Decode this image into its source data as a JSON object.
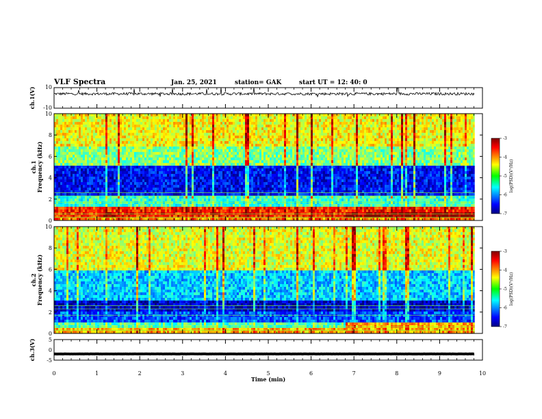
{
  "header": {
    "title": "VLF Spectra",
    "date": "Jan. 25, 2021",
    "station": "station= GAK",
    "start": "start  UT  =   12: 40: 0"
  },
  "panels": {
    "ch1v": {
      "label": "ch.1(V)",
      "ticks": [
        "10",
        "-10"
      ]
    },
    "spec1": {
      "label_ch": "ch.1",
      "label_freq": "Frequency (kHz)",
      "ticks": [
        "0",
        "2",
        "4",
        "6",
        "8",
        "10"
      ]
    },
    "spec2": {
      "label_ch": "ch.2",
      "label_freq": "Frequency (kHz)",
      "ticks": [
        "0",
        "2",
        "4",
        "6",
        "8",
        "10"
      ]
    },
    "ch3v": {
      "label": "ch.3(V)",
      "ticks": [
        "5",
        "0",
        "-5"
      ]
    },
    "xaxis": {
      "label": "Time (min)",
      "ticks": [
        "0",
        "1",
        "2",
        "3",
        "4",
        "5",
        "6",
        "7",
        "8",
        "9",
        "10"
      ]
    }
  },
  "colorbar": {
    "ticks": [
      "-3",
      "-4",
      "-5",
      "-6",
      "-7"
    ],
    "label": "log(PSD)(V²/Hz)"
  },
  "chart_data": {
    "type": "heatmap",
    "title": "VLF Spectra",
    "xlabel": "Time (min)",
    "xlim": [
      0,
      10
    ],
    "data_extent_min": 9.82,
    "subplots": [
      {
        "name": "ch.1(V)",
        "type": "line",
        "ylim": [
          -10,
          10
        ],
        "mean": 4,
        "noise": 1.3
      },
      {
        "name": "ch.1",
        "type": "heatmap",
        "ylabel": "Frequency (kHz)",
        "ylim": [
          0,
          10
        ],
        "clim": [
          -7,
          -3
        ],
        "bands": [
          {
            "fmin": 0.0,
            "fmax": 0.3,
            "level": -4.0
          },
          {
            "fmin": 0.3,
            "fmax": 1.2,
            "level": -3.6
          },
          {
            "fmin": 1.2,
            "fmax": 2.2,
            "level": -5.3
          },
          {
            "fmin": 2.2,
            "fmax": 5.2,
            "level": -6.5
          },
          {
            "fmin": 5.2,
            "fmax": 7.0,
            "level": -5.0
          },
          {
            "fmin": 7.0,
            "fmax": 10.0,
            "level": -4.5
          }
        ],
        "enhancements": [
          {
            "t0": 1.1,
            "t1": 1.4,
            "fmin": 0.3,
            "fmax": 0.8,
            "level": -3.2
          },
          {
            "t0": 6.8,
            "t1": 9.8,
            "fmin": 0.3,
            "fmax": 0.8,
            "level": -3.1
          }
        ]
      },
      {
        "name": "ch.2",
        "type": "heatmap",
        "ylabel": "Frequency (kHz)",
        "ylim": [
          0,
          10
        ],
        "clim": [
          -7,
          -3
        ],
        "bands": [
          {
            "fmin": 0.0,
            "fmax": 0.5,
            "level": -4.2
          },
          {
            "fmin": 0.5,
            "fmax": 1.0,
            "level": -5.2
          },
          {
            "fmin": 1.0,
            "fmax": 2.0,
            "level": -6.2
          },
          {
            "fmin": 2.0,
            "fmax": 3.0,
            "level": -6.7
          },
          {
            "fmin": 3.0,
            "fmax": 6.0,
            "level": -5.7
          },
          {
            "fmin": 6.0,
            "fmax": 10.0,
            "level": -4.6
          }
        ],
        "enhancements": [
          {
            "t0": 6.8,
            "t1": 9.8,
            "fmin": 0.5,
            "fmax": 1.0,
            "level": -4.2
          }
        ]
      },
      {
        "name": "ch.3(V)",
        "type": "line",
        "ylim": [
          -5,
          5
        ],
        "mean": -2,
        "noise": 0.05
      }
    ]
  }
}
